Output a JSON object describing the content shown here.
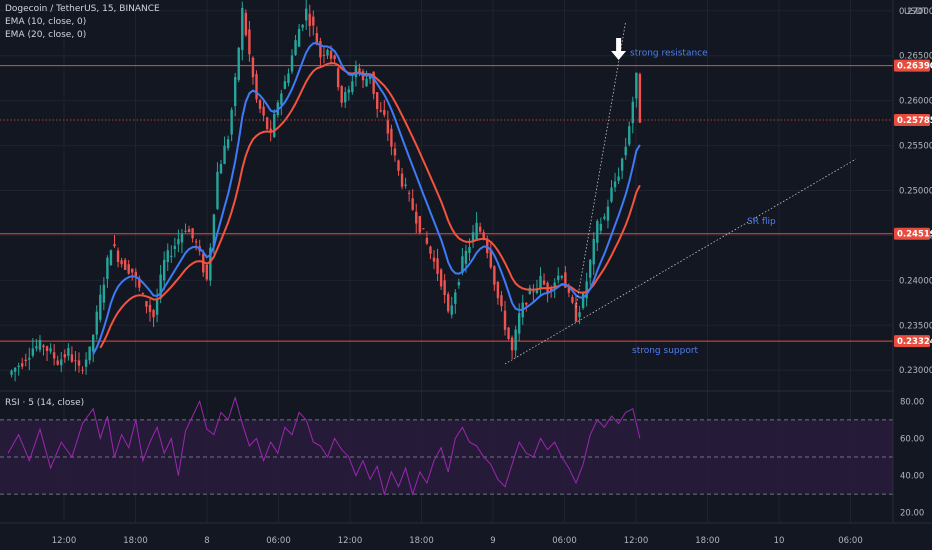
{
  "legend": {
    "symbol": "Dogecoin / TetherUS, 15, BINANCE",
    "ema10": "EMA (10, close, 0)",
    "ema20": "EMA (20, close, 0)",
    "rsi": "RSI · 5 (14, close)"
  },
  "colors": {
    "background": "#131722",
    "grid": "#1f2330",
    "up": "#26a69a",
    "down": "#ef5350",
    "ema10": "#3d7bf7",
    "ema20": "#f5533d",
    "level": "#e84c3d",
    "rsi_line": "#9c27b0",
    "rsi_band": "#2a1b3d"
  },
  "chart_data": {
    "type": "candlestick",
    "currency": "USDT",
    "ylim": [
      0.2278,
      0.2712
    ],
    "price_ticks": [
      "0.27000",
      "0.26500",
      "0.26000",
      "0.25500",
      "0.25000",
      "0.24500",
      "0.24000",
      "0.23500",
      "0.23000"
    ],
    "x_ticks": [
      "12:00",
      "18:00",
      "8",
      "06:00",
      "12:00",
      "18:00",
      "9",
      "06:00",
      "12:00",
      "18:00",
      "10",
      "06:00"
    ],
    "levels": [
      {
        "name": "strong-resistance",
        "price": 0.2639,
        "label": "0.26390",
        "style": "solid"
      },
      {
        "name": "current-price",
        "price": 0.25785,
        "label": "0.25785",
        "style": "dotted"
      },
      {
        "name": "sr-flip",
        "price": 0.24519,
        "label": "0.24519",
        "style": "solid"
      },
      {
        "name": "strong-support",
        "price": 0.23324,
        "label": "0.23324",
        "style": "solid"
      }
    ],
    "annotations": {
      "resistance": "strong resistance",
      "flip": "SR flip",
      "support": "strong support"
    },
    "price_path": [
      [
        0,
        0.2295
      ],
      [
        4,
        0.231
      ],
      [
        7,
        0.2325
      ],
      [
        10,
        0.2328
      ],
      [
        14,
        0.231
      ],
      [
        17,
        0.232
      ],
      [
        20,
        0.23
      ],
      [
        23,
        0.232
      ],
      [
        26,
        0.238
      ],
      [
        29,
        0.244
      ],
      [
        32,
        0.242
      ],
      [
        35,
        0.241
      ],
      [
        38,
        0.238
      ],
      [
        41,
        0.236
      ],
      [
        44,
        0.242
      ],
      [
        47,
        0.244
      ],
      [
        50,
        0.246
      ],
      [
        53,
        0.244
      ],
      [
        56,
        0.24
      ],
      [
        59,
        0.252
      ],
      [
        62,
        0.256
      ],
      [
        64,
        0.262
      ],
      [
        66,
        0.27
      ],
      [
        68,
        0.265
      ],
      [
        70,
        0.26
      ],
      [
        72,
        0.258
      ],
      [
        74,
        0.256
      ],
      [
        76,
        0.26
      ],
      [
        78,
        0.262
      ],
      [
        80,
        0.265
      ],
      [
        82,
        0.268
      ],
      [
        84,
        0.27
      ],
      [
        86,
        0.268
      ],
      [
        88,
        0.265
      ],
      [
        90,
        0.266
      ],
      [
        92,
        0.264
      ],
      [
        94,
        0.26
      ],
      [
        96,
        0.261
      ],
      [
        98,
        0.264
      ],
      [
        100,
        0.262
      ],
      [
        102,
        0.263
      ],
      [
        104,
        0.259
      ],
      [
        106,
        0.258
      ],
      [
        108,
        0.255
      ],
      [
        110,
        0.252
      ],
      [
        112,
        0.25
      ],
      [
        114,
        0.248
      ],
      [
        116,
        0.246
      ],
      [
        118,
        0.244
      ],
      [
        120,
        0.242
      ],
      [
        122,
        0.24
      ],
      [
        124,
        0.236
      ],
      [
        126,
        0.239
      ],
      [
        128,
        0.242
      ],
      [
        130,
        0.244
      ],
      [
        132,
        0.246
      ],
      [
        134,
        0.245
      ],
      [
        136,
        0.242
      ],
      [
        138,
        0.238
      ],
      [
        140,
        0.235
      ],
      [
        142,
        0.232
      ],
      [
        144,
        0.236
      ],
      [
        146,
        0.238
      ],
      [
        148,
        0.239
      ],
      [
        150,
        0.24
      ],
      [
        152,
        0.239
      ],
      [
        154,
        0.24
      ],
      [
        156,
        0.241
      ],
      [
        158,
        0.238
      ],
      [
        160,
        0.236
      ],
      [
        162,
        0.238
      ],
      [
        164,
        0.242
      ],
      [
        166,
        0.246
      ],
      [
        168,
        0.247
      ],
      [
        170,
        0.25
      ],
      [
        172,
        0.252
      ],
      [
        174,
        0.255
      ],
      [
        176,
        0.26
      ],
      [
        177,
        0.2625
      ],
      [
        178,
        0.258
      ]
    ],
    "rsi": {
      "levels": [
        70,
        50,
        30
      ],
      "ylim": [
        15,
        85
      ],
      "ticks": [
        "80.00",
        "60.00",
        "40.00",
        "20.00"
      ],
      "path": [
        [
          0,
          52
        ],
        [
          3,
          62
        ],
        [
          6,
          48
        ],
        [
          9,
          65
        ],
        [
          12,
          44
        ],
        [
          15,
          58
        ],
        [
          18,
          50
        ],
        [
          21,
          68
        ],
        [
          24,
          76
        ],
        [
          26,
          60
        ],
        [
          28,
          72
        ],
        [
          30,
          50
        ],
        [
          32,
          62
        ],
        [
          34,
          55
        ],
        [
          36,
          70
        ],
        [
          38,
          48
        ],
        [
          40,
          58
        ],
        [
          42,
          66
        ],
        [
          44,
          52
        ],
        [
          46,
          60
        ],
        [
          48,
          40
        ],
        [
          50,
          64
        ],
        [
          52,
          72
        ],
        [
          54,
          80
        ],
        [
          56,
          65
        ],
        [
          58,
          62
        ],
        [
          60,
          74
        ],
        [
          62,
          70
        ],
        [
          64,
          82
        ],
        [
          66,
          68
        ],
        [
          68,
          56
        ],
        [
          70,
          60
        ],
        [
          72,
          48
        ],
        [
          74,
          58
        ],
        [
          76,
          52
        ],
        [
          78,
          66
        ],
        [
          80,
          62
        ],
        [
          82,
          74
        ],
        [
          84,
          70
        ],
        [
          86,
          58
        ],
        [
          88,
          56
        ],
        [
          90,
          50
        ],
        [
          92,
          60
        ],
        [
          94,
          54
        ],
        [
          96,
          50
        ],
        [
          98,
          40
        ],
        [
          100,
          48
        ],
        [
          102,
          38
        ],
        [
          104,
          45
        ],
        [
          106,
          30
        ],
        [
          108,
          42
        ],
        [
          110,
          34
        ],
        [
          112,
          44
        ],
        [
          114,
          30
        ],
        [
          116,
          42
        ],
        [
          118,
          36
        ],
        [
          120,
          48
        ],
        [
          122,
          55
        ],
        [
          124,
          42
        ],
        [
          126,
          60
        ],
        [
          128,
          66
        ],
        [
          130,
          58
        ],
        [
          132,
          56
        ],
        [
          134,
          50
        ],
        [
          136,
          46
        ],
        [
          138,
          38
        ],
        [
          140,
          34
        ],
        [
          142,
          46
        ],
        [
          144,
          58
        ],
        [
          146,
          52
        ],
        [
          148,
          50
        ],
        [
          150,
          60
        ],
        [
          152,
          54
        ],
        [
          154,
          58
        ],
        [
          156,
          50
        ],
        [
          158,
          44
        ],
        [
          160,
          36
        ],
        [
          162,
          46
        ],
        [
          164,
          62
        ],
        [
          166,
          70
        ],
        [
          168,
          66
        ],
        [
          170,
          72
        ],
        [
          172,
          68
        ],
        [
          174,
          74
        ],
        [
          176,
          76
        ],
        [
          178,
          60
        ]
      ]
    }
  }
}
